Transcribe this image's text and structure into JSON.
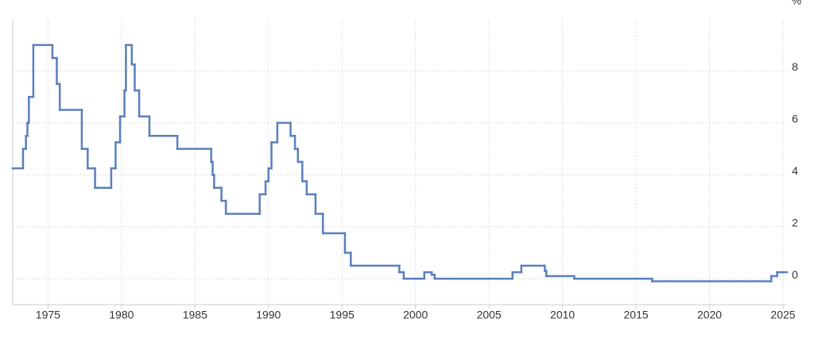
{
  "chart_data": {
    "type": "step",
    "ylabel": "%",
    "color": "#5a7fbd",
    "grid": true,
    "x": [
      1972.6,
      1973.3,
      1973.5,
      1973.6,
      1973.7,
      1974.0,
      1975.3,
      1975.6,
      1975.8,
      1977.3,
      1977.7,
      1978.2,
      1979.3,
      1979.6,
      1979.9,
      1980.2,
      1980.3,
      1980.7,
      1980.9,
      1981.2,
      1981.9,
      1983.8,
      1986.1,
      1986.2,
      1986.3,
      1986.8,
      1987.1,
      1989.4,
      1989.8,
      1990.0,
      1990.2,
      1990.6,
      1991.5,
      1991.8,
      1992.0,
      1992.3,
      1992.6,
      1993.2,
      1993.7,
      1995.2,
      1995.6,
      1998.9,
      1999.2,
      2000.6,
      2001.1,
      2001.3,
      2006.6,
      2007.2,
      2008.8,
      2008.9,
      2010.8,
      2016.1,
      2024.2,
      2024.6
    ],
    "values": [
      4.25,
      5.0,
      5.5,
      6.0,
      7.0,
      9.0,
      8.5,
      7.5,
      6.5,
      5.0,
      4.25,
      3.5,
      4.25,
      5.25,
      6.25,
      7.25,
      9.0,
      8.25,
      7.25,
      6.25,
      5.5,
      5.0,
      4.5,
      4.0,
      3.5,
      3.0,
      2.5,
      3.25,
      3.75,
      4.25,
      5.25,
      6.0,
      5.5,
      5.0,
      4.5,
      3.75,
      3.25,
      2.5,
      1.75,
      1.0,
      0.5,
      0.25,
      0.0,
      0.25,
      0.15,
      0.0,
      0.25,
      0.5,
      0.3,
      0.1,
      0.0,
      -0.1,
      0.1,
      0.25
    ],
    "xlim": [
      1972.6,
      2025.27
    ],
    "xticks": [
      1975,
      1980,
      1985,
      1990,
      1995,
      2000,
      2005,
      2010,
      2015,
      2020,
      2025
    ],
    "ylim": [
      -1,
      10
    ],
    "yticks": [
      0,
      2,
      4,
      6,
      8
    ]
  }
}
